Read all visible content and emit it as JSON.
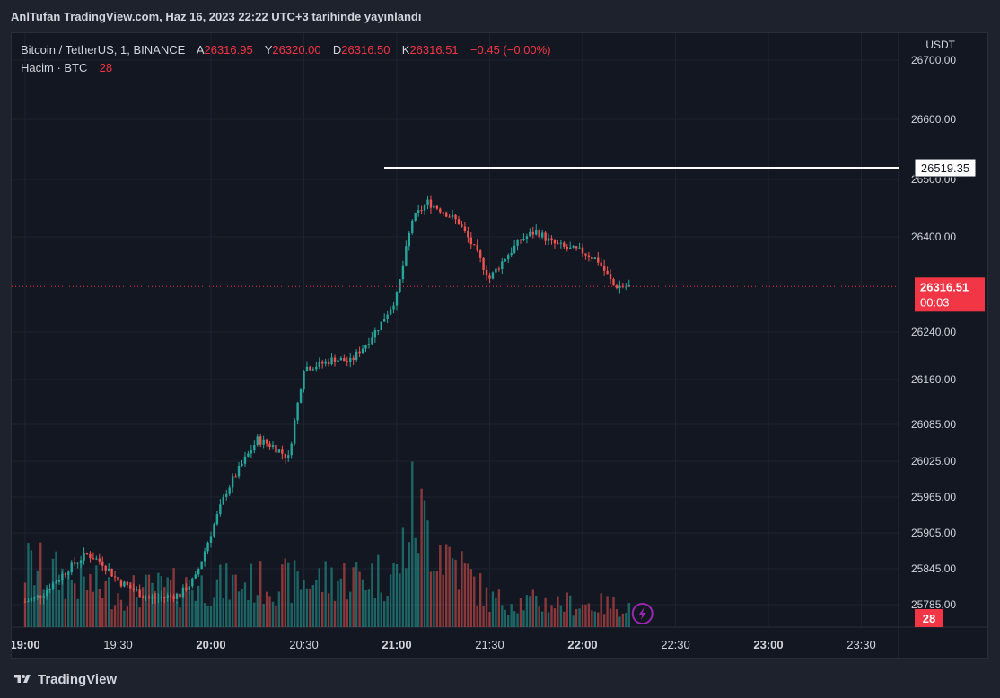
{
  "header": {
    "published_text": "AnlTufan TradingView.com, Haz 16, 2023 22:22 UTC+3 tarihinde yayınlandı"
  },
  "legend": {
    "symbol": "Bitcoin / TetherUS, 1, BINANCE",
    "open_label": "A",
    "open_value": "26316.95",
    "high_label": "Y",
    "high_value": "26320.00",
    "low_label": "D",
    "low_value": "26316.50",
    "close_label": "K",
    "close_value": "26316.51",
    "change": "−0.45 (−0.00%)",
    "volume_label": "Hacim · BTC",
    "volume_value": "28"
  },
  "price_axis": {
    "currency": "USDT",
    "ticks": [
      "26700.00",
      "26600.00",
      "26500.00",
      "26400.00",
      "26240.00",
      "26160.00",
      "26085.00",
      "26025.00",
      "25965.00",
      "25905.00",
      "25845.00",
      "25785.00"
    ]
  },
  "time_axis": {
    "ticks": [
      "19:00",
      "19:30",
      "20:00",
      "20:30",
      "21:00",
      "21:30",
      "22:00",
      "22:30",
      "23:00",
      "23:30"
    ]
  },
  "badges": {
    "horizontal_line_price": "26519.35",
    "last_price": "26316.51",
    "countdown": "00:03",
    "volume_last": "28"
  },
  "footer": {
    "brand": "TradingView"
  },
  "colors": {
    "up": "#26a69a",
    "down": "#ef5350",
    "background": "#131722",
    "grid": "#1f2330",
    "line": "#ffffff",
    "price_badge": "#f23645"
  },
  "chart_data": {
    "type": "candlestick",
    "title": "Bitcoin / TetherUS, 1, BINANCE",
    "interval_minutes": 1,
    "x_range": [
      "19:00",
      "23:45"
    ],
    "ylim_axis_labels_top_to_bottom": [
      "26700.00",
      "26600.00",
      "26500.00",
      "26400.00",
      "26240.00",
      "26160.00",
      "26085.00",
      "26025.00",
      "25965.00",
      "25905.00",
      "25845.00",
      "25785.00"
    ],
    "horizontal_line": 26519.35,
    "last_price": 26316.51,
    "series": [
      {
        "name": "price",
        "points": [
          {
            "t": "19:00",
            "p": 25790
          },
          {
            "t": "19:05",
            "p": 25800
          },
          {
            "t": "19:10",
            "p": 25825
          },
          {
            "t": "19:15",
            "p": 25850
          },
          {
            "t": "19:20",
            "p": 25870
          },
          {
            "t": "19:25",
            "p": 25855
          },
          {
            "t": "19:30",
            "p": 25825
          },
          {
            "t": "19:35",
            "p": 25810
          },
          {
            "t": "19:40",
            "p": 25795
          },
          {
            "t": "19:45",
            "p": 25798
          },
          {
            "t": "19:50",
            "p": 25802
          },
          {
            "t": "19:55",
            "p": 25830
          },
          {
            "t": "20:00",
            "p": 25905
          },
          {
            "t": "20:05",
            "p": 25975
          },
          {
            "t": "20:10",
            "p": 26020
          },
          {
            "t": "20:15",
            "p": 26060
          },
          {
            "t": "20:20",
            "p": 26050
          },
          {
            "t": "20:25",
            "p": 26030
          },
          {
            "t": "20:30",
            "p": 26180
          },
          {
            "t": "20:35",
            "p": 26185
          },
          {
            "t": "20:40",
            "p": 26195
          },
          {
            "t": "20:45",
            "p": 26190
          },
          {
            "t": "20:50",
            "p": 26220
          },
          {
            "t": "20:55",
            "p": 26255
          },
          {
            "t": "21:00",
            "p": 26300
          },
          {
            "t": "21:05",
            "p": 26430
          },
          {
            "t": "21:10",
            "p": 26460
          },
          {
            "t": "21:15",
            "p": 26445
          },
          {
            "t": "21:20",
            "p": 26425
          },
          {
            "t": "21:25",
            "p": 26380
          },
          {
            "t": "21:30",
            "p": 26330
          },
          {
            "t": "21:35",
            "p": 26365
          },
          {
            "t": "21:40",
            "p": 26395
          },
          {
            "t": "21:45",
            "p": 26410
          },
          {
            "t": "21:50",
            "p": 26390
          },
          {
            "t": "21:55",
            "p": 26380
          },
          {
            "t": "22:00",
            "p": 26375
          },
          {
            "t": "22:05",
            "p": 26360
          },
          {
            "t": "22:10",
            "p": 26318
          },
          {
            "t": "22:15",
            "p": 26316.51
          }
        ]
      }
    ],
    "volume": [
      {
        "t": "19:00",
        "v": 80
      },
      {
        "t": "19:30",
        "v": 45
      },
      {
        "t": "20:00",
        "v": 55
      },
      {
        "t": "20:30",
        "v": 60
      },
      {
        "t": "21:00",
        "v": 70
      },
      {
        "t": "21:05",
        "v": 150
      },
      {
        "t": "21:30",
        "v": 35
      },
      {
        "t": "22:00",
        "v": 30
      },
      {
        "t": "22:15",
        "v": 28
      }
    ]
  }
}
